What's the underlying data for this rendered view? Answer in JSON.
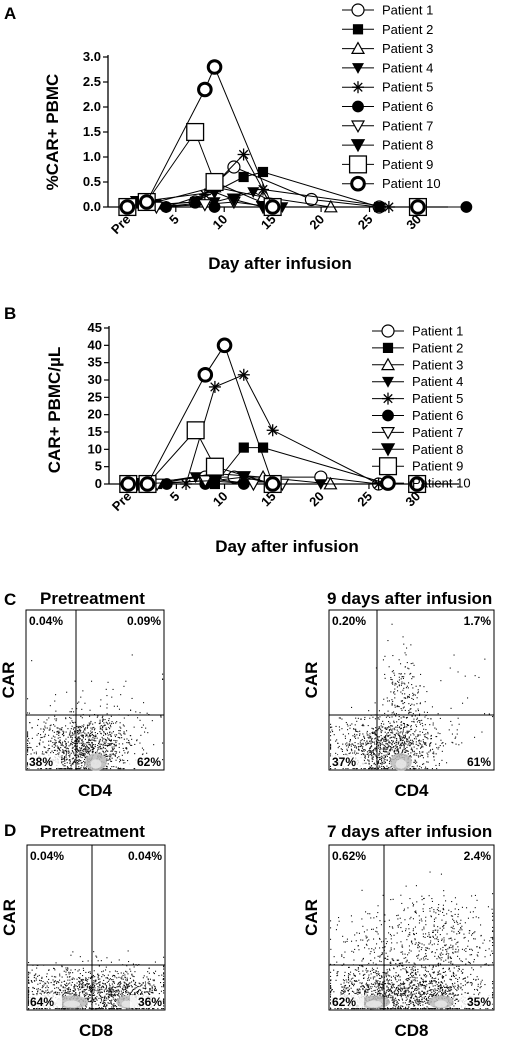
{
  "panels": {
    "A": {
      "letter": "A",
      "ylabel": "%CAR+ PBMC",
      "xlabel": "Day after infusion",
      "yticks": [
        "0.0",
        "0.5",
        "1.0",
        "1.5",
        "2.0",
        "2.5",
        "3.0"
      ],
      "xticks": [
        "Pre",
        "5",
        "10",
        "15",
        "20",
        "25",
        "30"
      ]
    },
    "B": {
      "letter": "B",
      "ylabel": "CAR+ PBMC/µL",
      "xlabel": "Day after infusion",
      "yticks": [
        "0",
        "5",
        "10",
        "15",
        "20",
        "25",
        "30",
        "35",
        "40",
        "45"
      ],
      "xticks": [
        "Pre",
        "5",
        "10",
        "15",
        "20",
        "25",
        "30"
      ]
    },
    "C": {
      "letter": "C",
      "left": {
        "title": "Pretreatment",
        "ylabel": "CAR",
        "xlabel": "CD4",
        "ul": "0.04%",
        "ur": "0.09%",
        "ll": "38%",
        "lr": "62%"
      },
      "right": {
        "title": "9 days after infusion",
        "ylabel": "CAR",
        "xlabel": "CD4",
        "ul": "0.20%",
        "ur": "1.7%",
        "ll": "37%",
        "lr": "61%"
      }
    },
    "D": {
      "letter": "D",
      "left": {
        "title": "Pretreatment",
        "ylabel": "CAR",
        "xlabel": "CD8",
        "ul": "0.04%",
        "ur": "0.04%",
        "ll": "64%",
        "lr": "36%"
      },
      "right": {
        "title": "7 days after infusion",
        "ylabel": "CAR",
        "xlabel": "CD8",
        "ul": "0.62%",
        "ur": "2.4%",
        "ll": "62%",
        "lr": "35%"
      }
    }
  },
  "chart_data": [
    {
      "type": "line",
      "panel": "A",
      "ylabel": "%CAR+ PBMC",
      "xlabel": "Day after infusion",
      "ylim": [
        0,
        3.0
      ],
      "xlim": [
        -2,
        33
      ],
      "x_tick_values": [
        0,
        5,
        10,
        15,
        20,
        25,
        30
      ],
      "x_tick_labels": [
        "Pre",
        "5",
        "10",
        "15",
        "20",
        "25",
        "30"
      ],
      "series": [
        {
          "name": "Patient 1",
          "marker": "circle-open",
          "x": [
            0,
            7,
            11,
            19,
            26
          ],
          "y": [
            0.0,
            0.1,
            0.8,
            0.15,
            0.0
          ]
        },
        {
          "name": "Patient 2",
          "marker": "square-filled",
          "x": [
            0,
            3,
            7,
            12,
            14,
            26
          ],
          "y": [
            0.0,
            0.05,
            0.1,
            0.6,
            0.7,
            0.0
          ]
        },
        {
          "name": "Patient 3",
          "marker": "triangle-up-open",
          "x": [
            0,
            2,
            9,
            14,
            21
          ],
          "y": [
            0.0,
            0.05,
            0.4,
            0.2,
            0.0
          ]
        },
        {
          "name": "Patient 4",
          "marker": "triangle-down-filled",
          "x": [
            0,
            3,
            9,
            13,
            16
          ],
          "y": [
            0.0,
            0.0,
            0.1,
            0.3,
            0.0
          ]
        },
        {
          "name": "Patient 5",
          "marker": "asterisk",
          "x": [
            0,
            4,
            8,
            12,
            14,
            27
          ],
          "y": [
            0.0,
            0.0,
            0.25,
            1.05,
            0.35,
            0.0
          ]
        },
        {
          "name": "Patient 6",
          "marker": "circle-filled",
          "x": [
            0,
            4,
            9,
            30,
            35
          ],
          "y": [
            0.0,
            0.0,
            0.0,
            0.0,
            0.0
          ]
        },
        {
          "name": "Patient 7",
          "marker": "triangle-down-open",
          "x": [
            0,
            3,
            8,
            11,
            15
          ],
          "y": [
            0.0,
            0.0,
            0.05,
            0.1,
            0.0
          ]
        },
        {
          "name": "Patient 8",
          "marker": "triangle-down-filled-large",
          "x": [
            0,
            1,
            9,
            11,
            14
          ],
          "y": [
            0.0,
            0.1,
            0.3,
            0.15,
            0.0
          ]
        },
        {
          "name": "Patient 9",
          "marker": "square-open",
          "x": [
            0,
            2,
            7,
            9,
            15,
            30
          ],
          "y": [
            0.0,
            0.1,
            1.5,
            0.5,
            0.0,
            0.0
          ]
        },
        {
          "name": "Patient 10",
          "marker": "circle-bold-open",
          "x": [
            0,
            2,
            8,
            9,
            15,
            30
          ],
          "y": [
            0.0,
            0.1,
            2.35,
            2.8,
            0.0,
            0.0
          ]
        }
      ]
    },
    {
      "type": "line",
      "panel": "B",
      "ylabel": "CAR+ PBMC/µL",
      "xlabel": "Day after infusion",
      "ylim": [
        0,
        45
      ],
      "xlim": [
        -2,
        33
      ],
      "x_tick_values": [
        0,
        5,
        10,
        15,
        20,
        25,
        30
      ],
      "x_tick_labels": [
        "Pre",
        "5",
        "10",
        "15",
        "20",
        "25",
        "30"
      ],
      "series": [
        {
          "name": "Patient 1",
          "marker": "circle-open",
          "x": [
            0,
            8,
            11,
            20,
            26
          ],
          "y": [
            0,
            2,
            2,
            2,
            0
          ]
        },
        {
          "name": "Patient 2",
          "marker": "square-filled",
          "x": [
            0,
            3,
            9,
            12,
            14,
            27
          ],
          "y": [
            0,
            0,
            0,
            10.5,
            10.5,
            0
          ]
        },
        {
          "name": "Patient 3",
          "marker": "triangle-up-open",
          "x": [
            0,
            2,
            9,
            14,
            21
          ],
          "y": [
            0,
            0,
            3,
            2,
            0
          ]
        },
        {
          "name": "Patient 4",
          "marker": "triangle-down-filled",
          "x": [
            0,
            3,
            7,
            13,
            20
          ],
          "y": [
            0,
            0,
            2,
            0,
            0
          ]
        },
        {
          "name": "Patient 5",
          "marker": "asterisk",
          "x": [
            0,
            6,
            9,
            12,
            15,
            26
          ],
          "y": [
            0,
            0,
            28,
            31.5,
            15.5,
            0
          ]
        },
        {
          "name": "Patient 6",
          "marker": "circle-filled",
          "x": [
            0,
            4,
            8,
            12
          ],
          "y": [
            0,
            0,
            0,
            0
          ]
        },
        {
          "name": "Patient 7",
          "marker": "triangle-down-open",
          "x": [
            0,
            3,
            8,
            13,
            16
          ],
          "y": [
            0,
            0,
            1,
            0,
            0
          ]
        },
        {
          "name": "Patient 8",
          "marker": "triangle-down-filled-large",
          "x": [
            0,
            1,
            9,
            12,
            15
          ],
          "y": [
            0,
            0,
            1,
            2,
            0
          ]
        },
        {
          "name": "Patient 9",
          "marker": "square-open",
          "x": [
            0,
            2,
            7,
            9,
            15,
            30
          ],
          "y": [
            0,
            0,
            15.5,
            5,
            0,
            0
          ]
        },
        {
          "name": "Patient 10",
          "marker": "circle-bold-open",
          "x": [
            0,
            2,
            8,
            10,
            15,
            30
          ],
          "y": [
            0,
            0,
            31.5,
            40,
            0,
            0
          ]
        }
      ]
    }
  ]
}
